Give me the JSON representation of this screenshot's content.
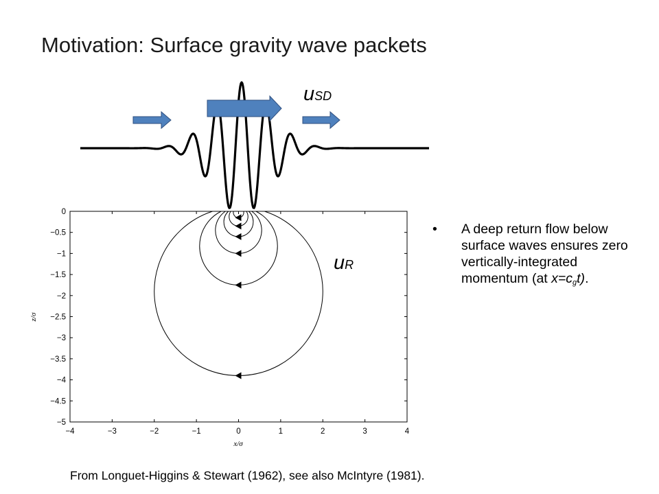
{
  "slide": {
    "title": "Motivation: Surface gravity wave packets",
    "bullet_symbol": "•",
    "bullet_text_1": "A deep return flow below surface waves ensures zero vertically-integrated momentum (at ",
    "bullet_text_x": "x=c",
    "bullet_text_sub": "g",
    "bullet_text_t": "t)",
    "bullet_text_end": ".",
    "citation": "From Longuet-Higgins & Stewart (1962), see also McIntyre (1981)."
  },
  "labels": {
    "stokes_drift_main": "u",
    "stokes_drift_sub": "SD",
    "return_flow_main": "u",
    "return_flow_sub": "R"
  },
  "colors": {
    "arrow_fill": "#4f81bd",
    "arrow_stroke": "#2f4f7f",
    "wave_line": "#000000"
  },
  "chart_data": {
    "type": "line",
    "title": "",
    "xlabel": "x/σ",
    "ylabel": "z/σ",
    "xlim": [
      -4,
      4
    ],
    "ylim": [
      -5,
      0
    ],
    "xticks": [
      -4,
      -3,
      -2,
      -1,
      0,
      1,
      2,
      3,
      4
    ],
    "yticks": [
      0,
      -0.5,
      -1,
      -1.5,
      -2,
      -2.5,
      -3,
      -3.5,
      -4,
      -4.5,
      -5
    ],
    "xtick_labels": [
      "−4",
      "−3",
      "−2",
      "−1",
      "0",
      "1",
      "2",
      "3",
      "4"
    ],
    "ytick_labels": [
      "0",
      "−0.5",
      "−1",
      "−1.5",
      "−2",
      "−2.5",
      "−3",
      "−3.5",
      "−4",
      "−4.5",
      "−5"
    ],
    "grid": false,
    "series": [
      {
        "depth": -0.15
      },
      {
        "depth": -0.35
      },
      {
        "depth": -0.6
      },
      {
        "depth": -1.0
      },
      {
        "depth": -1.75
      },
      {
        "depth": -3.9
      }
    ]
  }
}
